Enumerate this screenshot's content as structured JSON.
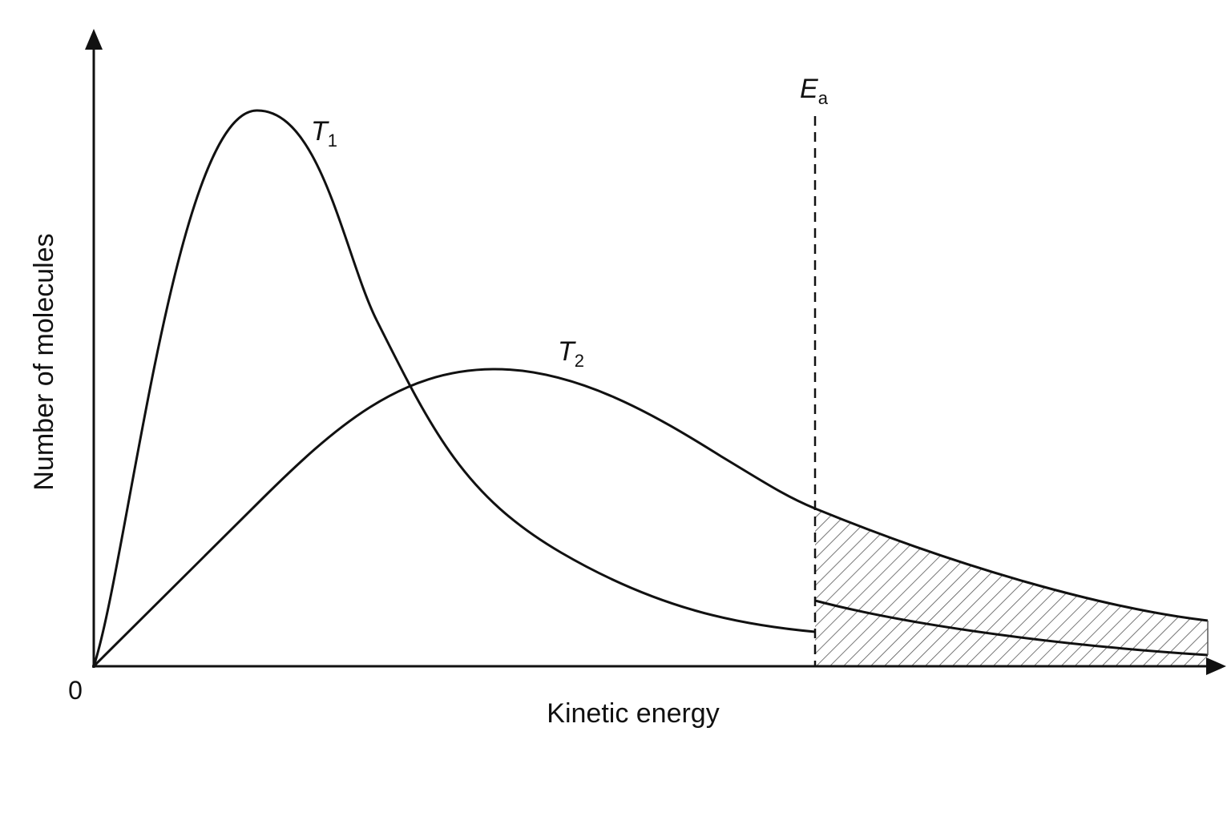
{
  "axes": {
    "y_label": "Number of molecules",
    "x_label": "Kinetic energy",
    "origin": "0"
  },
  "curves": [
    {
      "symbol": "T",
      "subscript": "1"
    },
    {
      "symbol": "T",
      "subscript": "2"
    }
  ],
  "activation_energy": {
    "symbol": "E",
    "subscript": "a"
  }
}
